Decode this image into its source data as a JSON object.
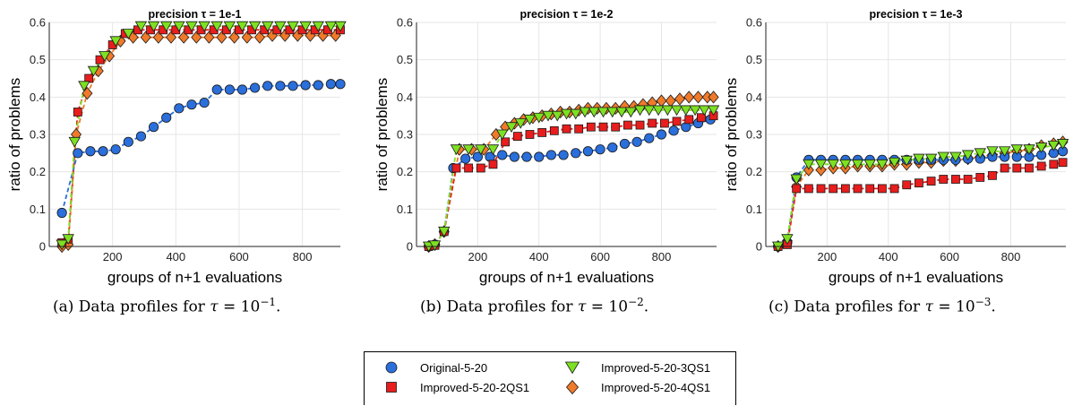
{
  "chart_data": [
    {
      "type": "line",
      "title": "precision τ = 1e-1",
      "xlabel": "groups of n+1 evaluations",
      "ylabel": "ratio of problems",
      "xlim": [
        0,
        920
      ],
      "ylim": [
        0,
        0.6
      ],
      "xticks": [
        200,
        400,
        600,
        800
      ],
      "yticks": [
        0,
        0.1,
        0.2,
        0.3,
        0.4,
        0.5,
        0.6
      ],
      "grid": true,
      "series": [
        {
          "name": "Original-5-20",
          "x": [
            40,
            90,
            130,
            170,
            210,
            250,
            290,
            330,
            370,
            410,
            450,
            490,
            530,
            570,
            610,
            650,
            690,
            730,
            770,
            810,
            850,
            890,
            920
          ],
          "y": [
            0.09,
            0.25,
            0.255,
            0.255,
            0.26,
            0.28,
            0.295,
            0.32,
            0.345,
            0.37,
            0.38,
            0.385,
            0.42,
            0.42,
            0.42,
            0.425,
            0.43,
            0.43,
            0.43,
            0.432,
            0.432,
            0.435,
            0.435
          ]
        },
        {
          "name": "Improved-5-20-2QS1",
          "x": [
            40,
            60,
            90,
            125,
            160,
            200,
            240,
            280,
            320,
            360,
            400,
            440,
            480,
            520,
            560,
            600,
            640,
            680,
            720,
            760,
            800,
            840,
            880,
            920
          ],
          "y": [
            0.01,
            0.02,
            0.36,
            0.45,
            0.5,
            0.54,
            0.57,
            0.58,
            0.58,
            0.58,
            0.58,
            0.58,
            0.58,
            0.58,
            0.58,
            0.58,
            0.58,
            0.58,
            0.58,
            0.58,
            0.58,
            0.58,
            0.58,
            0.58
          ]
        },
        {
          "name": "Improved-5-20-3QS1",
          "x": [
            40,
            60,
            80,
            110,
            140,
            175,
            210,
            250,
            290,
            330,
            370,
            410,
            450,
            490,
            530,
            570,
            610,
            650,
            690,
            730,
            770,
            810,
            850,
            890,
            920
          ],
          "y": [
            0.005,
            0.02,
            0.28,
            0.43,
            0.47,
            0.51,
            0.55,
            0.57,
            0.59,
            0.59,
            0.59,
            0.59,
            0.59,
            0.59,
            0.59,
            0.59,
            0.59,
            0.59,
            0.59,
            0.59,
            0.59,
            0.59,
            0.59,
            0.59,
            0.59
          ]
        },
        {
          "name": "Improved-5-20-4QS1",
          "x": [
            40,
            60,
            85,
            120,
            155,
            190,
            225,
            265,
            305,
            345,
            385,
            425,
            465,
            505,
            545,
            585,
            625,
            665,
            705,
            745,
            785,
            825,
            865,
            905
          ],
          "y": [
            0.0,
            0.005,
            0.3,
            0.41,
            0.47,
            0.51,
            0.55,
            0.56,
            0.56,
            0.56,
            0.56,
            0.56,
            0.56,
            0.56,
            0.56,
            0.56,
            0.56,
            0.56,
            0.565,
            0.565,
            0.565,
            0.565,
            0.565,
            0.565
          ]
        }
      ]
    },
    {
      "type": "line",
      "title": "precision τ = 1e-2",
      "xlabel": "groups of n+1 evaluations",
      "ylabel": "ratio of problems",
      "xlim": [
        0,
        980
      ],
      "ylim": [
        0,
        0.6
      ],
      "xticks": [
        200,
        400,
        600,
        800
      ],
      "yticks": [
        0,
        0.1,
        0.2,
        0.3,
        0.4,
        0.5,
        0.6
      ],
      "grid": true,
      "series": [
        {
          "name": "Original-5-20",
          "x": [
            40,
            60,
            90,
            120,
            160,
            200,
            240,
            280,
            320,
            360,
            400,
            440,
            480,
            520,
            560,
            600,
            640,
            680,
            720,
            760,
            800,
            840,
            880,
            920,
            960
          ],
          "y": [
            0,
            0.005,
            0.04,
            0.21,
            0.235,
            0.24,
            0.24,
            0.245,
            0.24,
            0.24,
            0.24,
            0.245,
            0.245,
            0.25,
            0.255,
            0.26,
            0.265,
            0.275,
            0.28,
            0.29,
            0.3,
            0.31,
            0.32,
            0.33,
            0.34
          ]
        },
        {
          "name": "Improved-5-20-2QS1",
          "x": [
            40,
            60,
            90,
            130,
            170,
            210,
            250,
            290,
            330,
            370,
            410,
            450,
            490,
            530,
            570,
            610,
            650,
            690,
            730,
            770,
            810,
            850,
            890,
            930,
            970
          ],
          "y": [
            0,
            0.003,
            0.04,
            0.21,
            0.21,
            0.21,
            0.22,
            0.28,
            0.295,
            0.3,
            0.305,
            0.31,
            0.315,
            0.315,
            0.32,
            0.32,
            0.32,
            0.325,
            0.325,
            0.33,
            0.33,
            0.335,
            0.34,
            0.345,
            0.35
          ]
        },
        {
          "name": "Improved-5-20-3QS1",
          "x": [
            40,
            60,
            90,
            130,
            170,
            210,
            250,
            280,
            310,
            340,
            370,
            400,
            430,
            460,
            490,
            520,
            550,
            580,
            610,
            640,
            670,
            700,
            730,
            760,
            790,
            820,
            850,
            880,
            910,
            940,
            970
          ],
          "y": [
            0,
            0.003,
            0.04,
            0.26,
            0.26,
            0.26,
            0.26,
            0.3,
            0.32,
            0.33,
            0.34,
            0.345,
            0.35,
            0.35,
            0.355,
            0.355,
            0.36,
            0.36,
            0.36,
            0.36,
            0.36,
            0.36,
            0.365,
            0.365,
            0.365,
            0.365,
            0.365,
            0.365,
            0.365,
            0.365,
            0.365
          ]
        },
        {
          "name": "Improved-5-20-4QS1",
          "x": [
            40,
            60,
            90,
            140,
            180,
            220,
            260,
            290,
            320,
            350,
            380,
            410,
            440,
            470,
            500,
            530,
            560,
            590,
            620,
            650,
            680,
            710,
            740,
            770,
            800,
            830,
            860,
            890,
            920,
            950,
            970
          ],
          "y": [
            0,
            0.005,
            0.04,
            0.26,
            0.26,
            0.26,
            0.3,
            0.32,
            0.33,
            0.34,
            0.345,
            0.35,
            0.355,
            0.36,
            0.36,
            0.365,
            0.37,
            0.37,
            0.37,
            0.37,
            0.375,
            0.375,
            0.38,
            0.385,
            0.39,
            0.39,
            0.395,
            0.4,
            0.4,
            0.4,
            0.4
          ]
        }
      ]
    },
    {
      "type": "line",
      "title": "precision τ = 1e-3",
      "xlabel": "groups of n+1 evaluations",
      "ylabel": "ratio of problems",
      "xlim": [
        0,
        980
      ],
      "ylim": [
        0,
        0.6
      ],
      "xticks": [
        200,
        400,
        600,
        800
      ],
      "yticks": [
        0,
        0.1,
        0.2,
        0.3,
        0.4,
        0.5,
        0.6
      ],
      "grid": true,
      "series": [
        {
          "name": "Original-5-20",
          "x": [
            40,
            70,
            100,
            140,
            180,
            220,
            260,
            300,
            340,
            380,
            420,
            460,
            500,
            540,
            580,
            620,
            660,
            700,
            740,
            780,
            820,
            860,
            900,
            940,
            970
          ],
          "y": [
            0,
            0.01,
            0.185,
            0.232,
            0.232,
            0.232,
            0.232,
            0.232,
            0.232,
            0.232,
            0.232,
            0.232,
            0.232,
            0.232,
            0.232,
            0.232,
            0.235,
            0.235,
            0.24,
            0.24,
            0.24,
            0.24,
            0.245,
            0.25,
            0.255
          ]
        },
        {
          "name": "Improved-5-20-2QS1",
          "x": [
            40,
            70,
            100,
            140,
            180,
            220,
            260,
            300,
            340,
            380,
            420,
            460,
            500,
            540,
            580,
            620,
            660,
            700,
            740,
            780,
            820,
            860,
            900,
            940,
            970
          ],
          "y": [
            0,
            0.005,
            0.155,
            0.155,
            0.155,
            0.155,
            0.155,
            0.155,
            0.155,
            0.155,
            0.155,
            0.165,
            0.17,
            0.175,
            0.18,
            0.18,
            0.18,
            0.185,
            0.19,
            0.21,
            0.21,
            0.21,
            0.215,
            0.22,
            0.225
          ]
        },
        {
          "name": "Improved-5-20-3QS1",
          "x": [
            40,
            70,
            100,
            140,
            180,
            220,
            260,
            300,
            340,
            380,
            420,
            460,
            500,
            540,
            580,
            620,
            660,
            700,
            740,
            780,
            820,
            860,
            900,
            940,
            970
          ],
          "y": [
            0,
            0.02,
            0.18,
            0.22,
            0.22,
            0.22,
            0.22,
            0.22,
            0.22,
            0.22,
            0.225,
            0.23,
            0.235,
            0.235,
            0.24,
            0.24,
            0.245,
            0.25,
            0.255,
            0.255,
            0.26,
            0.26,
            0.265,
            0.27,
            0.275
          ]
        },
        {
          "name": "Improved-5-20-4QS1",
          "x": [
            40,
            70,
            100,
            140,
            180,
            220,
            260,
            300,
            340,
            380,
            420,
            460,
            500,
            540,
            580,
            620,
            660,
            700,
            740,
            780,
            820,
            860,
            900,
            940,
            970
          ],
          "y": [
            0,
            0.015,
            0.16,
            0.205,
            0.205,
            0.21,
            0.21,
            0.215,
            0.215,
            0.215,
            0.22,
            0.22,
            0.225,
            0.225,
            0.23,
            0.23,
            0.235,
            0.24,
            0.245,
            0.25,
            0.255,
            0.26,
            0.27,
            0.275,
            0.28
          ]
        }
      ]
    }
  ],
  "captions": [
    {
      "prefix": "(a) Data profiles for",
      "sym": "τ",
      "eq": " = 10",
      "exp": "−1",
      "suffix": "."
    },
    {
      "prefix": "(b) Data profiles for",
      "sym": "τ",
      "eq": " = 10",
      "exp": "−2",
      "suffix": "."
    },
    {
      "prefix": "(c) Data profiles for",
      "sym": "τ",
      "eq": " = 10",
      "exp": "−3",
      "suffix": "."
    }
  ],
  "legend": {
    "items": [
      {
        "label": "Original-5-20",
        "marker": "circle",
        "color": "#2a6fdb"
      },
      {
        "label": "Improved-5-20-2QS1",
        "marker": "square",
        "color": "#e81d1d"
      },
      {
        "label": "Improved-5-20-3QS1",
        "marker": "triangle-down",
        "color": "#7de022"
      },
      {
        "label": "Improved-5-20-4QS1",
        "marker": "diamond",
        "color": "#ef7a2a"
      }
    ]
  },
  "colors": {
    "circle": "#2a6fdb",
    "square": "#e81d1d",
    "triangle": "#7de022",
    "diamond": "#ef7a2a",
    "grid": "#e6e6e6"
  }
}
